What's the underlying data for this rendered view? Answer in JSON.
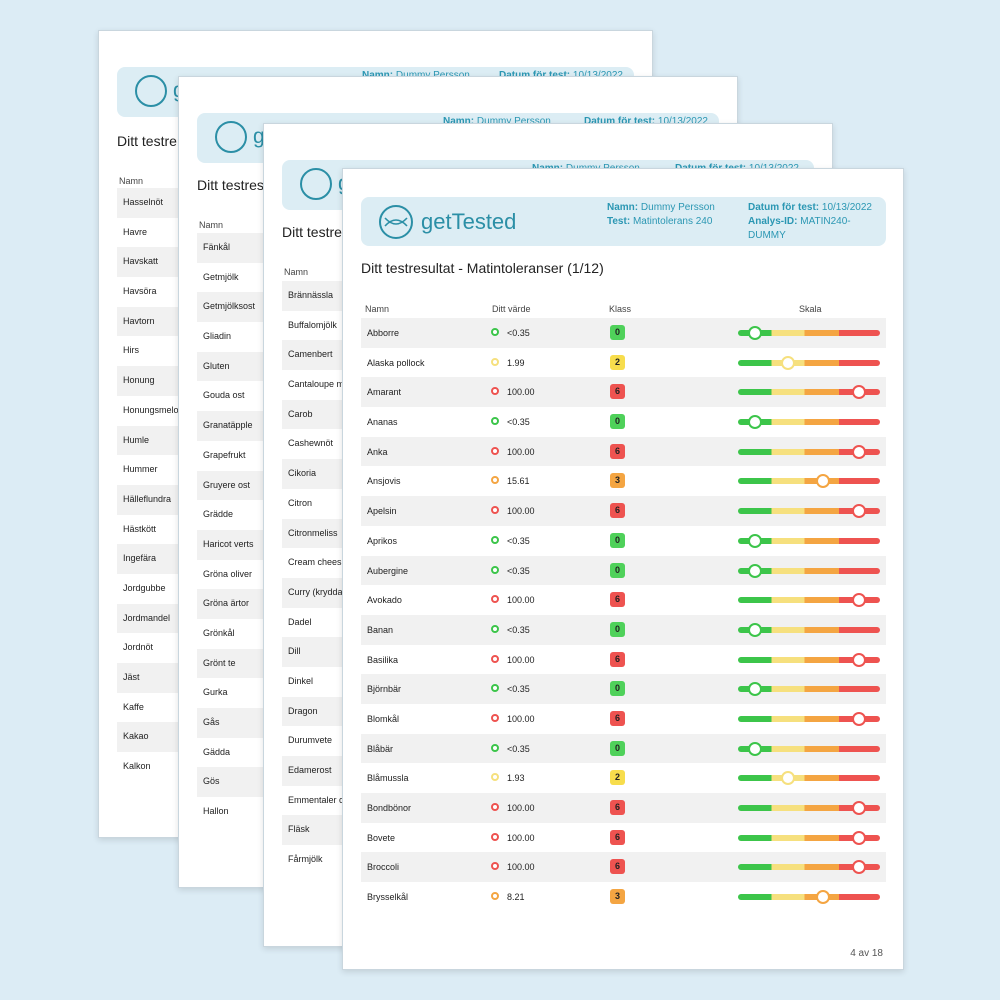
{
  "colors": {
    "green": "#3cc54a",
    "yellow": "#f6e07e",
    "orange": "#f4a542",
    "red": "#ee5350",
    "accent": "#2b8fa6"
  },
  "brand": "getTested",
  "header": {
    "name_label": "Namn:",
    "name_value": "Dummy Persson",
    "test_label": "Test:",
    "test_value": "Matintolerans 240",
    "date_label": "Datum för test:",
    "date_value": "10/13/2022",
    "analysis_label": "Analys-ID:",
    "analysis_value_line1": "MATIN240-",
    "analysis_value_line2": "DUMMY"
  },
  "back_title": "Ditt testres",
  "back_title_short": "Ditt testre",
  "title": "Ditt testresultat - Matintoleranser (1/12)",
  "columns": {
    "name": "Namn",
    "value": "Ditt värde",
    "class": "Klass",
    "scale": "Skala"
  },
  "page1_items": [
    "Hasselnöt",
    "Havre",
    "Havskatt",
    "Havsöra",
    "Havtorn",
    "Hirs",
    "Honung",
    "Honungsmelo",
    "Humle",
    "Hummer",
    "Hälleflundra",
    "Hästkött",
    "Ingefära",
    "Jordgubbe",
    "Jordmandel",
    "Jordnöt",
    "Jäst",
    "Kaffe",
    "Kakao",
    "Kalkon"
  ],
  "page2_items": [
    "Fänkål",
    "Getmjölk",
    "Getmjölksost",
    "Gliadin",
    "Gluten",
    "Gouda ost",
    "Granatäpple",
    "Grapefrukt",
    "Gruyere ost",
    "Grädde",
    "Haricot verts",
    "Gröna oliver",
    "Gröna ärtor",
    "Grönkål",
    "Grönt te",
    "Gurka",
    "Gås",
    "Gädda",
    "Gös",
    "Hallon"
  ],
  "page3_items": [
    "Brännässla",
    "Buffalomjölk",
    "Camenbert",
    "Cantaloupe m",
    "Carob",
    "Cashewnöt",
    "Cikoria",
    "Citron",
    "Citronmeliss",
    "Cream chees",
    "Curry (krydda",
    "Dadel",
    "Dill",
    "Dinkel",
    "Dragon",
    "Durumvete",
    "Edamerost",
    "Emmentaler c",
    "Fläsk",
    "Fårmjölk"
  ],
  "results": [
    {
      "name": "Abborre",
      "value": "<0.35",
      "klass": "0",
      "level": 0.12
    },
    {
      "name": "Alaska pollock",
      "value": "1.99",
      "klass": "2",
      "level": 0.35
    },
    {
      "name": "Amarant",
      "value": "100.00",
      "klass": "6",
      "level": 0.85
    },
    {
      "name": "Ananas",
      "value": "<0.35",
      "klass": "0",
      "level": 0.12
    },
    {
      "name": "Anka",
      "value": "100.00",
      "klass": "6",
      "level": 0.85
    },
    {
      "name": "Ansjovis",
      "value": "15.61",
      "klass": "3",
      "level": 0.6
    },
    {
      "name": "Apelsin",
      "value": "100.00",
      "klass": "6",
      "level": 0.85
    },
    {
      "name": "Aprikos",
      "value": "<0.35",
      "klass": "0",
      "level": 0.12
    },
    {
      "name": "Aubergine",
      "value": "<0.35",
      "klass": "0",
      "level": 0.12
    },
    {
      "name": "Avokado",
      "value": "100.00",
      "klass": "6",
      "level": 0.85
    },
    {
      "name": "Banan",
      "value": "<0.35",
      "klass": "0",
      "level": 0.12
    },
    {
      "name": "Basilika",
      "value": "100.00",
      "klass": "6",
      "level": 0.85
    },
    {
      "name": "Björnbär",
      "value": "<0.35",
      "klass": "0",
      "level": 0.12
    },
    {
      "name": "Blomkål",
      "value": "100.00",
      "klass": "6",
      "level": 0.85
    },
    {
      "name": "Blåbär",
      "value": "<0.35",
      "klass": "0",
      "level": 0.12
    },
    {
      "name": "Blåmussla",
      "value": "1.93",
      "klass": "2",
      "level": 0.35
    },
    {
      "name": "Bondbönor",
      "value": "100.00",
      "klass": "6",
      "level": 0.85
    },
    {
      "name": "Bovete",
      "value": "100.00",
      "klass": "6",
      "level": 0.85
    },
    {
      "name": "Broccoli",
      "value": "100.00",
      "klass": "6",
      "level": 0.85
    },
    {
      "name": "Brysselkål",
      "value": "8.21",
      "klass": "3",
      "level": 0.6
    }
  ],
  "footer": "4 av 18"
}
